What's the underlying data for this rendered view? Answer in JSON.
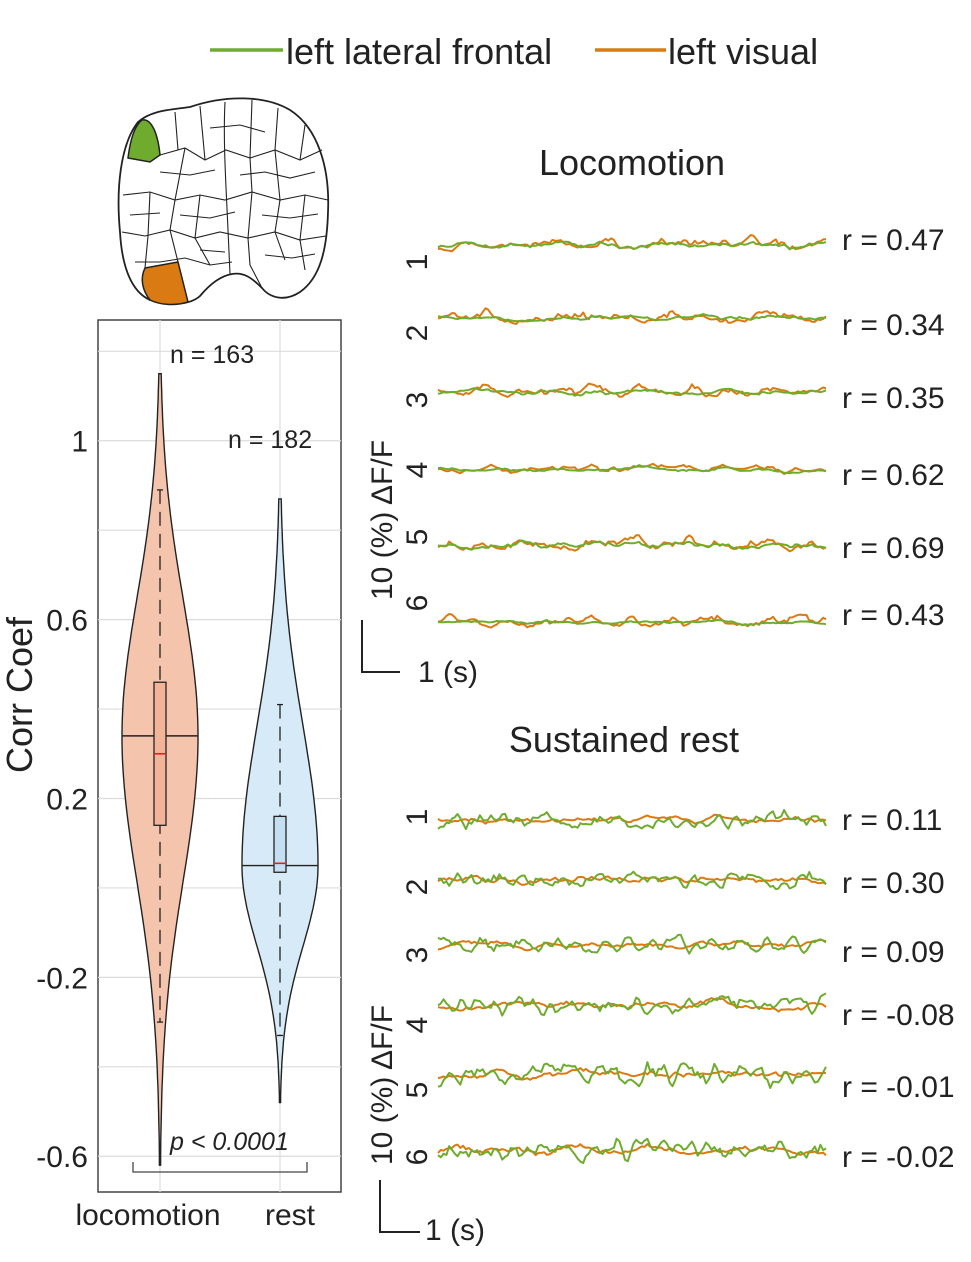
{
  "legend": {
    "entries": [
      {
        "label": "left lateral frontal",
        "color": "#6fac2e"
      },
      {
        "label": "left visual",
        "color": "#d97b12"
      }
    ]
  },
  "brain_map": {
    "highlighted_regions": [
      {
        "region": "left lateral frontal",
        "color": "#6fac2e"
      },
      {
        "region": "left visual",
        "color": "#d97b12"
      }
    ]
  },
  "chart_data": [
    {
      "type": "violin",
      "ylabel": "Corr Coef",
      "ylim": [
        -0.68,
        1.27
      ],
      "yticks": [
        1,
        0.6,
        0.2,
        -0.2,
        -0.6
      ],
      "ytick_labels": [
        "1",
        "0.6",
        "0.2",
        "-0.2",
        "-0.6"
      ],
      "grid": true,
      "categories": [
        "locomotion",
        "rest"
      ],
      "series": [
        {
          "name": "locomotion",
          "n_label": "n = 163",
          "fill": "#f5c4ad",
          "box_fill": "#f3b59a",
          "median": 0.3,
          "q1": 0.14,
          "q3": 0.46,
          "whisker_low": -0.3,
          "whisker_high": 0.89,
          "min": -0.62,
          "max": 1.15,
          "density_peak": 0.34
        },
        {
          "name": "rest",
          "n_label": "n = 182",
          "fill": "#d6eaf8",
          "box_fill": "#c4def2",
          "median": 0.055,
          "q1": 0.035,
          "q3": 0.16,
          "whisker_low": -0.33,
          "whisker_high": 0.41,
          "min": -0.48,
          "max": 0.87,
          "density_peak": 0.05
        }
      ],
      "significance": {
        "label": "p < 0.0001",
        "between": [
          "locomotion",
          "rest"
        ]
      }
    },
    {
      "type": "line",
      "title": "Locomotion",
      "scale_bar": {
        "y_label": "10 (%) ΔF/F",
        "x_label": "1 (s)"
      },
      "series_names": [
        "left lateral frontal",
        "left visual"
      ],
      "traces": [
        {
          "label": "1",
          "r": "r = 0.47",
          "seed": 11,
          "green_amp": 5.0,
          "orange_amp": 8.0,
          "correlation": 0.47
        },
        {
          "label": "2",
          "r": "r = 0.34",
          "seed": 23,
          "green_amp": 5.5,
          "orange_amp": 9.0,
          "correlation": 0.34
        },
        {
          "label": "3",
          "r": "r = 0.35",
          "seed": 37,
          "green_amp": 6.0,
          "orange_amp": 9.5,
          "correlation": 0.35
        },
        {
          "label": "4",
          "r": "r = 0.62",
          "seed": 41,
          "green_amp": 5.0,
          "orange_amp": 7.5,
          "correlation": 0.62
        },
        {
          "label": "5",
          "r": "r = 0.69",
          "seed": 53,
          "green_amp": 6.0,
          "orange_amp": 10.0,
          "correlation": 0.69
        },
        {
          "label": "6",
          "r": "r = 0.43",
          "seed": 67,
          "green_amp": 4.0,
          "orange_amp": 8.5,
          "correlation": 0.43
        }
      ]
    },
    {
      "type": "line",
      "title": "Sustained rest",
      "scale_bar": {
        "y_label": "10 (%) ΔF/F",
        "x_label": "1 (s)"
      },
      "series_names": [
        "left lateral frontal",
        "left visual"
      ],
      "traces": [
        {
          "label": "1",
          "r": "r = 0.11",
          "seed": 71,
          "green_amp": 11.0,
          "orange_amp": 6.0,
          "correlation": 0.11
        },
        {
          "label": "2",
          "r": "r = 0.30",
          "seed": 83,
          "green_amp": 12.0,
          "orange_amp": 6.5,
          "correlation": 0.3
        },
        {
          "label": "3",
          "r": "r = 0.09",
          "seed": 97,
          "green_amp": 12.0,
          "orange_amp": 6.0,
          "correlation": 0.09
        },
        {
          "label": "4",
          "r": "r = -0.08",
          "seed": 103,
          "green_amp": 11.5,
          "orange_amp": 7.0,
          "correlation": -0.08
        },
        {
          "label": "5",
          "r": "r = -0.01",
          "seed": 113,
          "green_amp": 13.0,
          "orange_amp": 7.0,
          "correlation": -0.01
        },
        {
          "label": "6",
          "r": "r = -0.02",
          "seed": 127,
          "green_amp": 13.0,
          "orange_amp": 6.0,
          "correlation": -0.02
        }
      ]
    }
  ]
}
